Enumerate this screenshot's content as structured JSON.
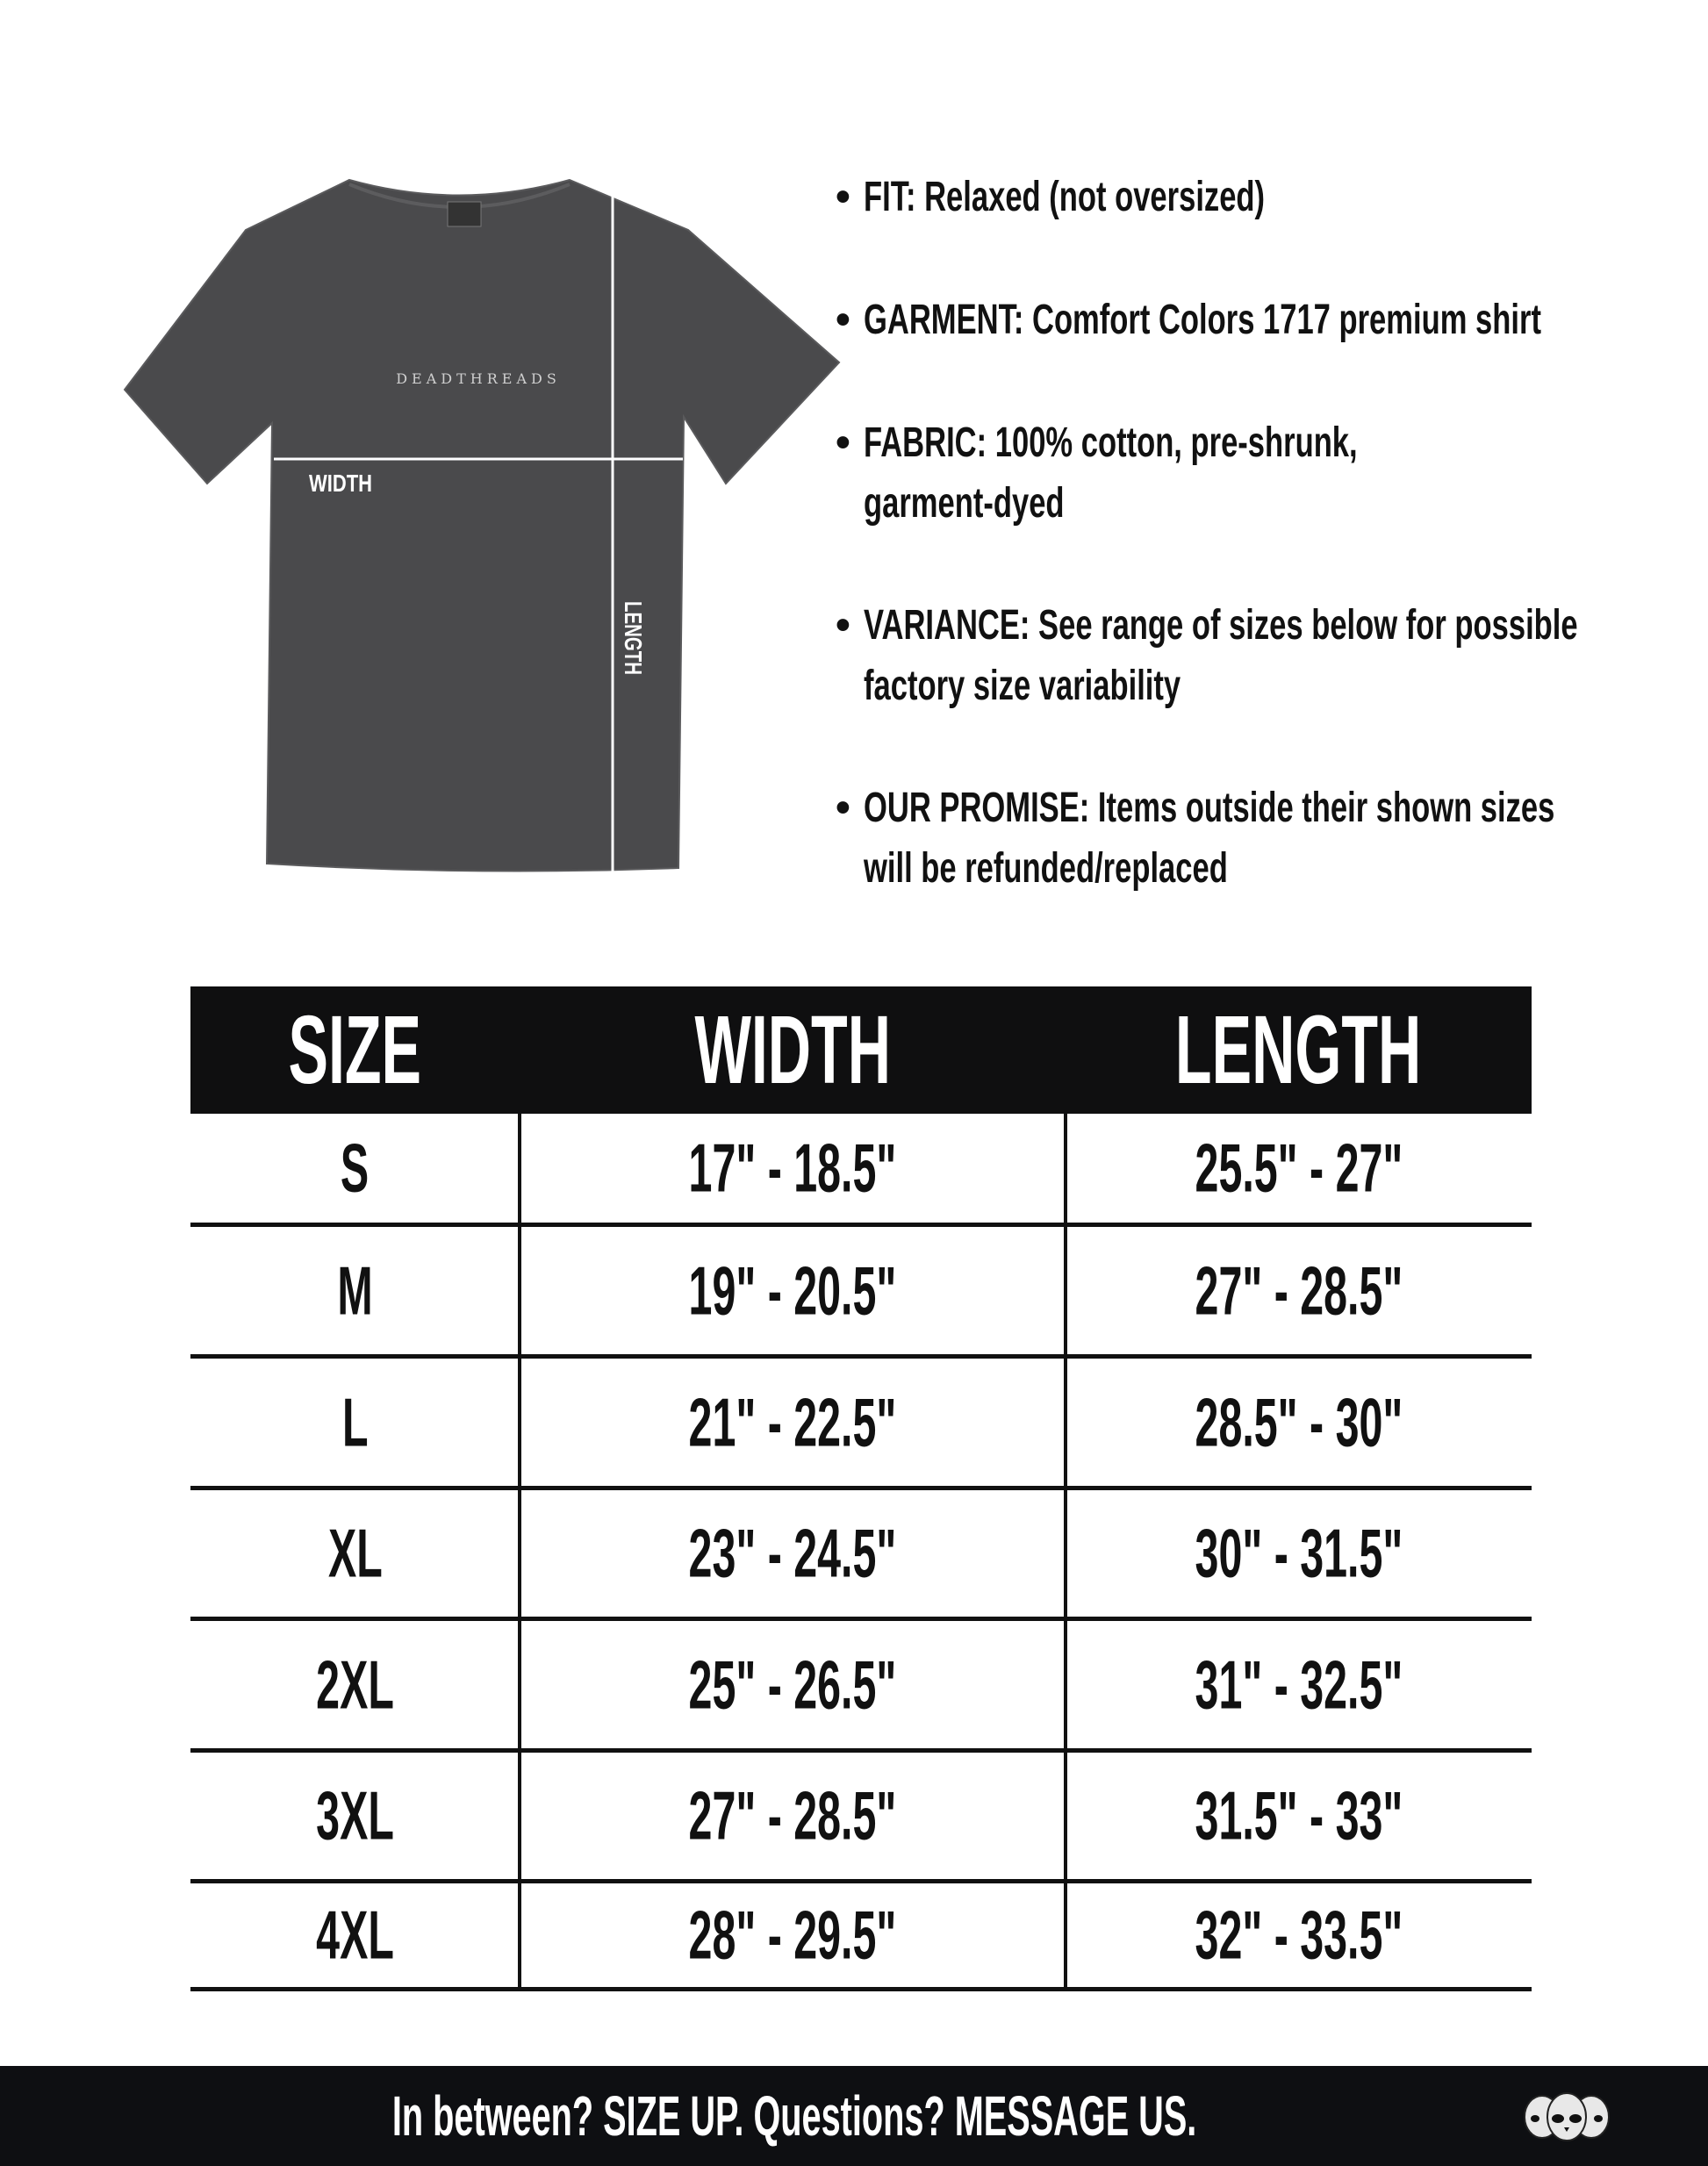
{
  "shirt": {
    "brand_print": "DEADTHREADS",
    "width_label": "WIDTH",
    "length_label": "LENGTH",
    "color": "#4a4a4c"
  },
  "details": [
    {
      "text": "FIT: Relaxed (not oversized)"
    },
    {
      "text": "GARMENT: Comfort Colors 1717 premium shirt"
    },
    {
      "text": "FABRIC: 100% cotton, pre-shrunk,",
      "text2": "garment-dyed"
    },
    {
      "text": "VARIANCE: See range of sizes below for possible",
      "text2": "factory size variability"
    },
    {
      "text": "OUR PROMISE: Items outside their shown sizes",
      "text2": "will be refunded/replaced"
    }
  ],
  "size_table": {
    "headers": [
      "SIZE",
      "WIDTH",
      "LENGTH"
    ],
    "rows": [
      [
        "S",
        "17\" - 18.5\"",
        "25.5\" - 27\""
      ],
      [
        "M",
        "19\" - 20.5\"",
        "27\" - 28.5\""
      ],
      [
        "L",
        "21\" - 22.5\"",
        "28.5\" - 30\""
      ],
      [
        "XL",
        "23\" - 24.5\"",
        "30\" - 31.5\""
      ],
      [
        "2XL",
        "25\" - 26.5\"",
        "31\" - 32.5\""
      ],
      [
        "3XL",
        "27\" - 28.5\"",
        "31.5\" - 33\""
      ],
      [
        "4XL",
        "28\" - 29.5\"",
        "32\" - 33.5\""
      ]
    ]
  },
  "footer": {
    "message": "In between? SIZE UP. Questions? MESSAGE US.",
    "logo": "three-skulls-logo"
  }
}
